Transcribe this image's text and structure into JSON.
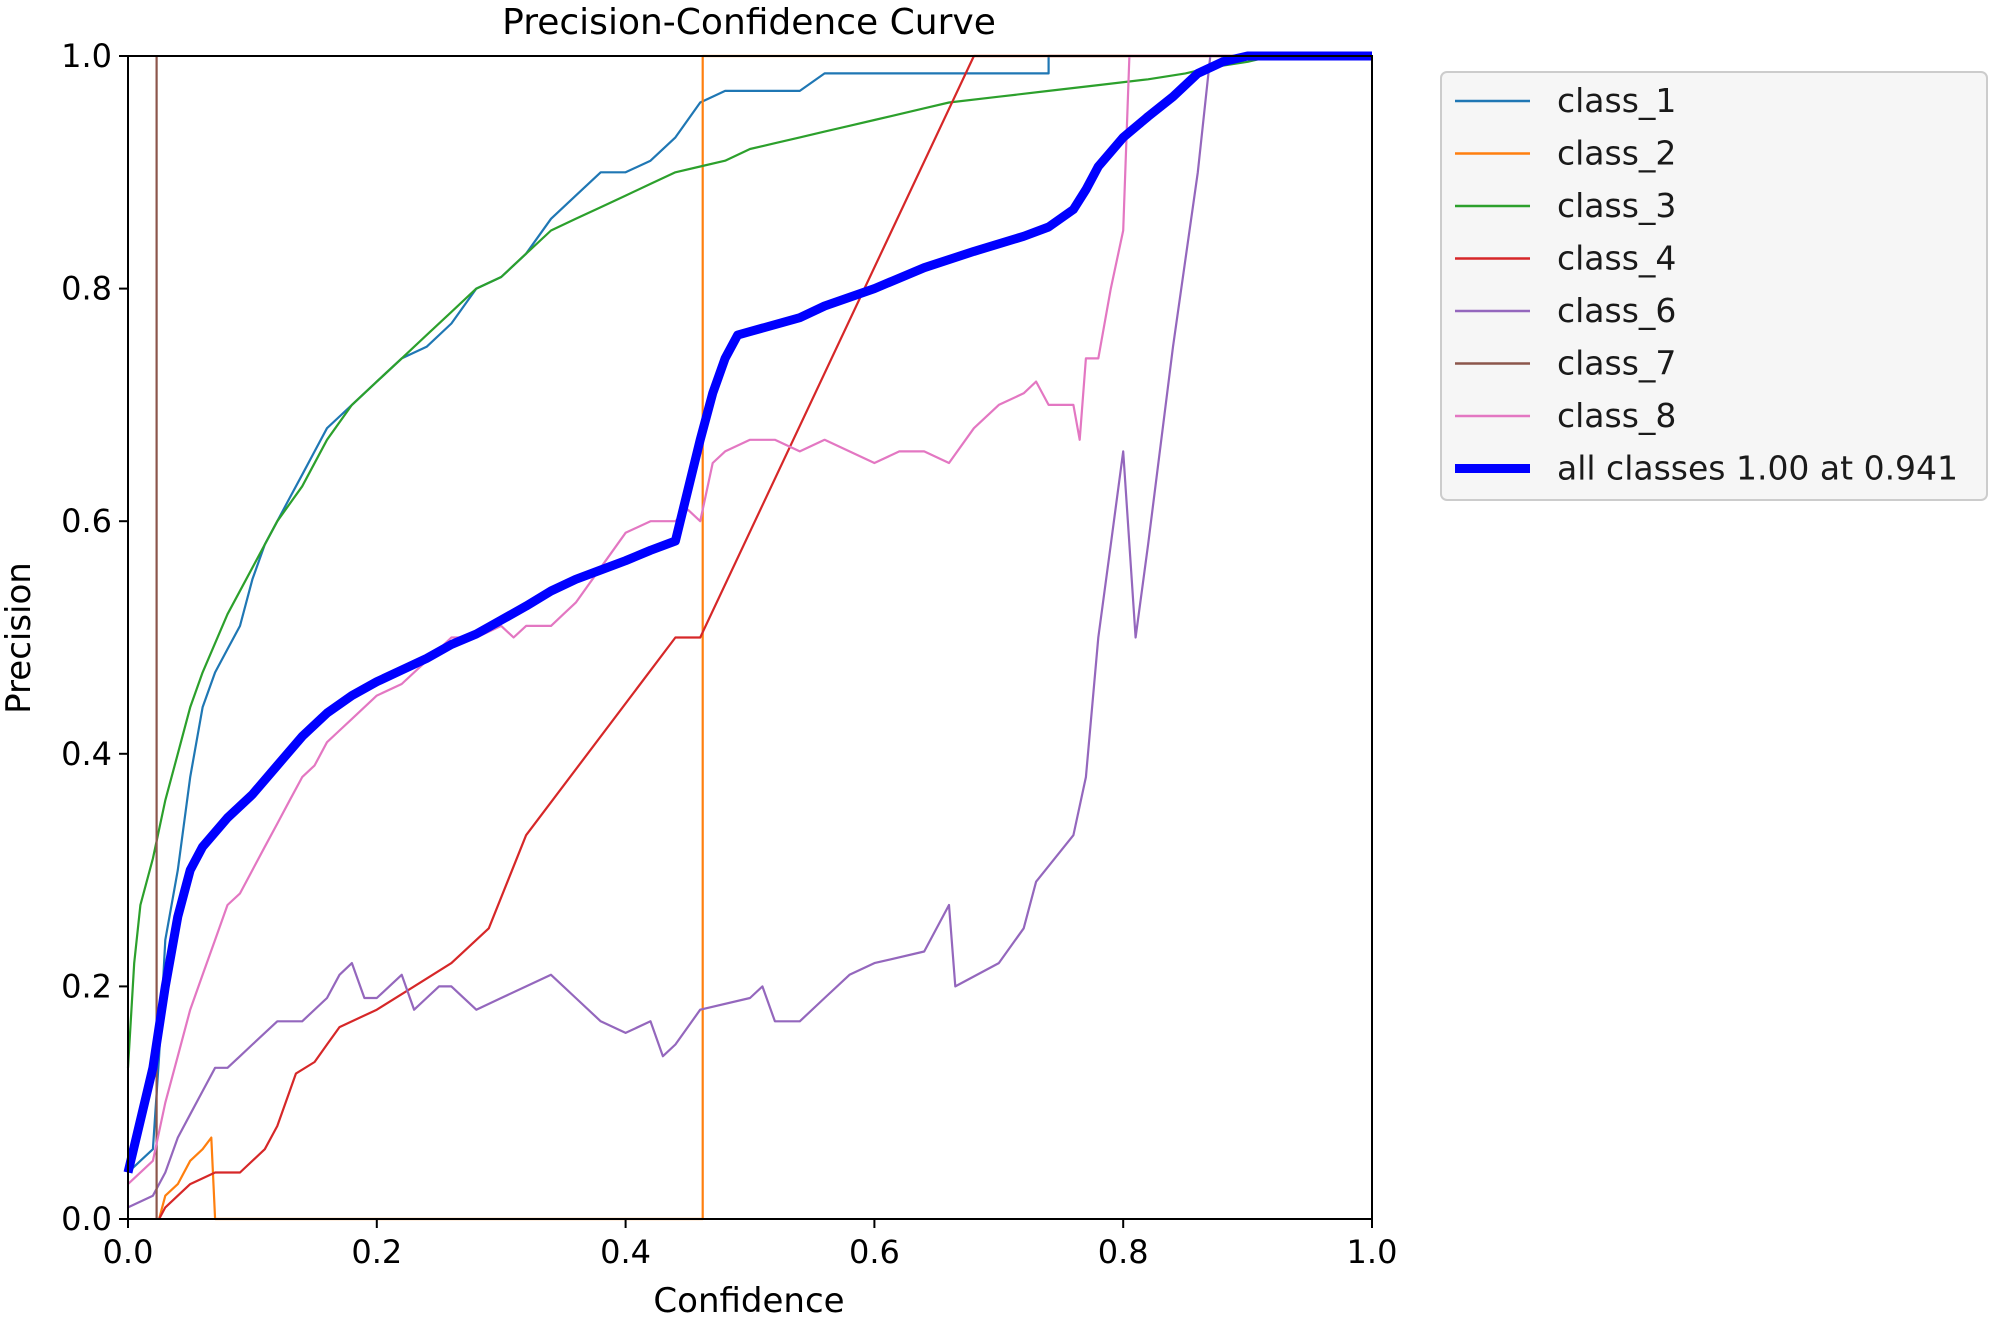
{
  "chart_data": {
    "type": "line",
    "title": "Precision-Confidence Curve",
    "xlabel": "Confidence",
    "ylabel": "Precision",
    "xlim": [
      0,
      1
    ],
    "ylim": [
      0,
      1
    ],
    "xticks": [
      "0.0",
      "0.2",
      "0.4",
      "0.6",
      "0.8",
      "1.0"
    ],
    "yticks": [
      "0.0",
      "0.2",
      "0.4",
      "0.6",
      "0.8",
      "1.0"
    ],
    "grid": false,
    "legend_position": "outside-right",
    "series": [
      {
        "name": "class_1",
        "color": "#1f77b4",
        "points": [
          [
            0,
            0.04
          ],
          [
            0.01,
            0.05
          ],
          [
            0.02,
            0.06
          ],
          [
            0.025,
            0.14
          ],
          [
            0.03,
            0.24
          ],
          [
            0.04,
            0.3
          ],
          [
            0.05,
            0.38
          ],
          [
            0.06,
            0.44
          ],
          [
            0.07,
            0.47
          ],
          [
            0.08,
            0.49
          ],
          [
            0.09,
            0.51
          ],
          [
            0.1,
            0.55
          ],
          [
            0.11,
            0.58
          ],
          [
            0.12,
            0.6
          ],
          [
            0.13,
            0.62
          ],
          [
            0.14,
            0.64
          ],
          [
            0.15,
            0.66
          ],
          [
            0.16,
            0.68
          ],
          [
            0.17,
            0.69
          ],
          [
            0.18,
            0.7
          ],
          [
            0.2,
            0.72
          ],
          [
            0.22,
            0.74
          ],
          [
            0.24,
            0.75
          ],
          [
            0.26,
            0.77
          ],
          [
            0.28,
            0.8
          ],
          [
            0.3,
            0.81
          ],
          [
            0.32,
            0.83
          ],
          [
            0.34,
            0.86
          ],
          [
            0.36,
            0.88
          ],
          [
            0.38,
            0.9
          ],
          [
            0.4,
            0.9
          ],
          [
            0.42,
            0.91
          ],
          [
            0.44,
            0.93
          ],
          [
            0.46,
            0.96
          ],
          [
            0.48,
            0.97
          ],
          [
            0.5,
            0.97
          ],
          [
            0.54,
            0.97
          ],
          [
            0.56,
            0.985
          ],
          [
            0.6,
            0.985
          ],
          [
            0.72,
            0.985
          ],
          [
            0.74,
            0.985
          ],
          [
            0.74,
            1.0
          ],
          [
            1.0,
            1.0
          ]
        ]
      },
      {
        "name": "class_2",
        "color": "#ff7f0e",
        "points": [
          [
            0.025,
            0
          ],
          [
            0.03,
            0.02
          ],
          [
            0.04,
            0.03
          ],
          [
            0.05,
            0.05
          ],
          [
            0.06,
            0.06
          ],
          [
            0.067,
            0.07
          ],
          [
            0.07,
            0
          ],
          [
            0.2,
            0
          ],
          [
            0.4,
            0
          ],
          [
            0.462,
            0
          ],
          [
            0.462,
            1.0
          ],
          [
            1.0,
            1.0
          ]
        ]
      },
      {
        "name": "class_3",
        "color": "#2ca02c",
        "points": [
          [
            0,
            0.13
          ],
          [
            0.005,
            0.22
          ],
          [
            0.01,
            0.27
          ],
          [
            0.02,
            0.31
          ],
          [
            0.03,
            0.36
          ],
          [
            0.04,
            0.4
          ],
          [
            0.05,
            0.44
          ],
          [
            0.06,
            0.47
          ],
          [
            0.08,
            0.52
          ],
          [
            0.1,
            0.56
          ],
          [
            0.12,
            0.6
          ],
          [
            0.14,
            0.63
          ],
          [
            0.16,
            0.67
          ],
          [
            0.18,
            0.7
          ],
          [
            0.2,
            0.72
          ],
          [
            0.22,
            0.74
          ],
          [
            0.24,
            0.76
          ],
          [
            0.26,
            0.78
          ],
          [
            0.28,
            0.8
          ],
          [
            0.3,
            0.81
          ],
          [
            0.32,
            0.83
          ],
          [
            0.34,
            0.85
          ],
          [
            0.36,
            0.86
          ],
          [
            0.38,
            0.87
          ],
          [
            0.4,
            0.88
          ],
          [
            0.42,
            0.89
          ],
          [
            0.44,
            0.9
          ],
          [
            0.46,
            0.905
          ],
          [
            0.48,
            0.91
          ],
          [
            0.5,
            0.92
          ],
          [
            0.52,
            0.925
          ],
          [
            0.54,
            0.93
          ],
          [
            0.56,
            0.935
          ],
          [
            0.58,
            0.94
          ],
          [
            0.6,
            0.945
          ],
          [
            0.62,
            0.95
          ],
          [
            0.64,
            0.955
          ],
          [
            0.66,
            0.96
          ],
          [
            0.7,
            0.965
          ],
          [
            0.74,
            0.97
          ],
          [
            0.78,
            0.975
          ],
          [
            0.82,
            0.98
          ],
          [
            0.85,
            0.985
          ],
          [
            0.87,
            0.99
          ],
          [
            0.9,
            0.995
          ],
          [
            0.92,
            1.0
          ],
          [
            1.0,
            1.0
          ]
        ]
      },
      {
        "name": "class_4",
        "color": "#d62728",
        "points": [
          [
            0.025,
            0
          ],
          [
            0.03,
            0.01
          ],
          [
            0.04,
            0.02
          ],
          [
            0.05,
            0.03
          ],
          [
            0.07,
            0.04
          ],
          [
            0.09,
            0.04
          ],
          [
            0.11,
            0.06
          ],
          [
            0.12,
            0.08
          ],
          [
            0.13,
            0.11
          ],
          [
            0.135,
            0.125
          ],
          [
            0.15,
            0.135
          ],
          [
            0.16,
            0.15
          ],
          [
            0.17,
            0.165
          ],
          [
            0.2,
            0.18
          ],
          [
            0.23,
            0.2
          ],
          [
            0.26,
            0.22
          ],
          [
            0.29,
            0.25
          ],
          [
            0.32,
            0.33
          ],
          [
            0.44,
            0.5
          ],
          [
            0.46,
            0.5
          ],
          [
            0.68,
            1.0
          ],
          [
            1.0,
            1.0
          ]
        ]
      },
      {
        "name": "class_6",
        "color": "#9467bd",
        "points": [
          [
            0,
            0.01
          ],
          [
            0.02,
            0.02
          ],
          [
            0.03,
            0.04
          ],
          [
            0.04,
            0.07
          ],
          [
            0.05,
            0.09
          ],
          [
            0.06,
            0.11
          ],
          [
            0.07,
            0.13
          ],
          [
            0.08,
            0.13
          ],
          [
            0.09,
            0.14
          ],
          [
            0.1,
            0.15
          ],
          [
            0.12,
            0.17
          ],
          [
            0.14,
            0.17
          ],
          [
            0.16,
            0.19
          ],
          [
            0.17,
            0.21
          ],
          [
            0.18,
            0.22
          ],
          [
            0.19,
            0.19
          ],
          [
            0.2,
            0.19
          ],
          [
            0.22,
            0.21
          ],
          [
            0.23,
            0.18
          ],
          [
            0.24,
            0.19
          ],
          [
            0.25,
            0.2
          ],
          [
            0.26,
            0.2
          ],
          [
            0.28,
            0.18
          ],
          [
            0.3,
            0.19
          ],
          [
            0.32,
            0.2
          ],
          [
            0.34,
            0.21
          ],
          [
            0.36,
            0.19
          ],
          [
            0.38,
            0.17
          ],
          [
            0.4,
            0.16
          ],
          [
            0.42,
            0.17
          ],
          [
            0.43,
            0.14
          ],
          [
            0.44,
            0.15
          ],
          [
            0.46,
            0.18
          ],
          [
            0.5,
            0.19
          ],
          [
            0.51,
            0.2
          ],
          [
            0.52,
            0.17
          ],
          [
            0.54,
            0.17
          ],
          [
            0.56,
            0.19
          ],
          [
            0.58,
            0.21
          ],
          [
            0.6,
            0.22
          ],
          [
            0.64,
            0.23
          ],
          [
            0.66,
            0.27
          ],
          [
            0.665,
            0.2
          ],
          [
            0.7,
            0.22
          ],
          [
            0.72,
            0.25
          ],
          [
            0.73,
            0.29
          ],
          [
            0.76,
            0.33
          ],
          [
            0.77,
            0.38
          ],
          [
            0.78,
            0.5
          ],
          [
            0.79,
            0.58
          ],
          [
            0.8,
            0.66
          ],
          [
            0.81,
            0.5
          ],
          [
            0.82,
            0.58
          ],
          [
            0.84,
            0.75
          ],
          [
            0.86,
            0.9
          ],
          [
            0.87,
            1.0
          ],
          [
            1.0,
            1.0
          ]
        ]
      },
      {
        "name": "class_7",
        "color": "#8c564b",
        "points": [
          [
            0.023,
            0
          ],
          [
            0.023,
            1.0
          ]
        ]
      },
      {
        "name": "class_8",
        "color": "#e377c2",
        "points": [
          [
            0,
            0.03
          ],
          [
            0.02,
            0.05
          ],
          [
            0.03,
            0.1
          ],
          [
            0.04,
            0.14
          ],
          [
            0.05,
            0.18
          ],
          [
            0.06,
            0.21
          ],
          [
            0.07,
            0.24
          ],
          [
            0.08,
            0.27
          ],
          [
            0.09,
            0.28
          ],
          [
            0.1,
            0.3
          ],
          [
            0.11,
            0.32
          ],
          [
            0.12,
            0.34
          ],
          [
            0.13,
            0.36
          ],
          [
            0.14,
            0.38
          ],
          [
            0.15,
            0.39
          ],
          [
            0.16,
            0.41
          ],
          [
            0.17,
            0.42
          ],
          [
            0.18,
            0.43
          ],
          [
            0.2,
            0.45
          ],
          [
            0.22,
            0.46
          ],
          [
            0.24,
            0.48
          ],
          [
            0.26,
            0.5
          ],
          [
            0.28,
            0.5
          ],
          [
            0.3,
            0.51
          ],
          [
            0.31,
            0.5
          ],
          [
            0.32,
            0.51
          ],
          [
            0.34,
            0.51
          ],
          [
            0.35,
            0.52
          ],
          [
            0.36,
            0.53
          ],
          [
            0.38,
            0.56
          ],
          [
            0.4,
            0.59
          ],
          [
            0.42,
            0.6
          ],
          [
            0.44,
            0.6
          ],
          [
            0.45,
            0.61
          ],
          [
            0.46,
            0.6
          ],
          [
            0.47,
            0.65
          ],
          [
            0.48,
            0.66
          ],
          [
            0.5,
            0.67
          ],
          [
            0.52,
            0.67
          ],
          [
            0.54,
            0.66
          ],
          [
            0.56,
            0.67
          ],
          [
            0.58,
            0.66
          ],
          [
            0.6,
            0.65
          ],
          [
            0.62,
            0.66
          ],
          [
            0.64,
            0.66
          ],
          [
            0.66,
            0.65
          ],
          [
            0.68,
            0.68
          ],
          [
            0.7,
            0.7
          ],
          [
            0.72,
            0.71
          ],
          [
            0.73,
            0.72
          ],
          [
            0.74,
            0.7
          ],
          [
            0.76,
            0.7
          ],
          [
            0.765,
            0.67
          ],
          [
            0.77,
            0.74
          ],
          [
            0.78,
            0.74
          ],
          [
            0.79,
            0.8
          ],
          [
            0.8,
            0.85
          ],
          [
            0.805,
            1.0
          ],
          [
            1.0,
            1.0
          ]
        ]
      },
      {
        "name": "all classes 1.00 at 0.941",
        "color": "#0000ff",
        "thick": true,
        "points": [
          [
            0,
            0.04
          ],
          [
            0.02,
            0.13
          ],
          [
            0.03,
            0.2
          ],
          [
            0.04,
            0.26
          ],
          [
            0.05,
            0.3
          ],
          [
            0.06,
            0.32
          ],
          [
            0.08,
            0.345
          ],
          [
            0.1,
            0.365
          ],
          [
            0.12,
            0.39
          ],
          [
            0.14,
            0.415
          ],
          [
            0.16,
            0.435
          ],
          [
            0.18,
            0.45
          ],
          [
            0.2,
            0.462
          ],
          [
            0.22,
            0.472
          ],
          [
            0.24,
            0.482
          ],
          [
            0.26,
            0.494
          ],
          [
            0.28,
            0.503
          ],
          [
            0.3,
            0.515
          ],
          [
            0.32,
            0.527
          ],
          [
            0.34,
            0.54
          ],
          [
            0.36,
            0.55
          ],
          [
            0.38,
            0.558
          ],
          [
            0.4,
            0.566
          ],
          [
            0.42,
            0.575
          ],
          [
            0.44,
            0.583
          ],
          [
            0.46,
            0.67
          ],
          [
            0.47,
            0.71
          ],
          [
            0.48,
            0.74
          ],
          [
            0.49,
            0.76
          ],
          [
            0.5,
            0.763
          ],
          [
            0.54,
            0.775
          ],
          [
            0.56,
            0.785
          ],
          [
            0.6,
            0.8
          ],
          [
            0.64,
            0.818
          ],
          [
            0.68,
            0.832
          ],
          [
            0.72,
            0.845
          ],
          [
            0.74,
            0.853
          ],
          [
            0.76,
            0.868
          ],
          [
            0.77,
            0.885
          ],
          [
            0.78,
            0.905
          ],
          [
            0.8,
            0.93
          ],
          [
            0.82,
            0.948
          ],
          [
            0.84,
            0.965
          ],
          [
            0.86,
            0.985
          ],
          [
            0.88,
            0.995
          ],
          [
            0.9,
            1.0
          ],
          [
            0.941,
            1.0
          ],
          [
            1.0,
            1.0
          ]
        ]
      }
    ]
  }
}
